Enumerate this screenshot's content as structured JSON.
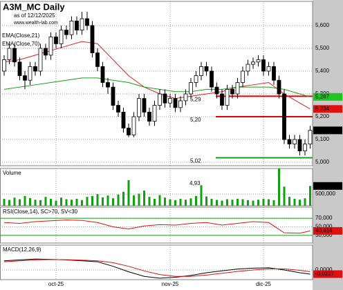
{
  "chart_data": [
    {
      "type": "candlestick",
      "title": "A3M_MC Daily",
      "subtitle": "as of 12/12/2025",
      "source": "www.wealth-lab.com",
      "categories": [
        null,
        null,
        null,
        null,
        null,
        null,
        null,
        null,
        null,
        null,
        "oct-25",
        null,
        null,
        null,
        null,
        null,
        null,
        null,
        null,
        null,
        null,
        null,
        null,
        null,
        null,
        null,
        null,
        null,
        null,
        null,
        null,
        null,
        "nov-25",
        null,
        null,
        null,
        null,
        null,
        null,
        null,
        null,
        null,
        null,
        null,
        null,
        null,
        null,
        null,
        null,
        null,
        "dic-25",
        null,
        null,
        null,
        null,
        null,
        null,
        null,
        null,
        null
      ],
      "open": [
        5.4,
        5.45,
        5.5,
        5.44,
        5.38,
        5.36,
        5.42,
        5.4,
        5.5,
        5.47,
        5.55,
        5.52,
        5.58,
        5.56,
        5.62,
        5.58,
        5.63,
        5.6,
        5.48,
        5.42,
        5.35,
        5.33,
        5.25,
        5.22,
        5.15,
        5.12,
        5.2,
        5.28,
        5.22,
        5.18,
        5.25,
        5.3,
        5.26,
        5.28,
        5.24,
        5.27,
        5.3,
        5.35,
        5.38,
        5.42,
        5.4,
        5.33,
        5.3,
        5.25,
        5.32,
        5.3,
        5.35,
        5.4,
        5.43,
        5.44,
        5.45,
        5.4,
        5.42,
        5.36,
        5.3,
        5.1,
        5.08,
        5.1,
        5.05,
        5.08
      ],
      "high": [
        5.47,
        5.52,
        5.52,
        5.46,
        5.4,
        5.44,
        5.44,
        5.52,
        5.52,
        5.57,
        5.57,
        5.6,
        5.6,
        5.64,
        5.64,
        5.66,
        5.66,
        5.62,
        5.5,
        5.44,
        5.37,
        5.35,
        5.27,
        5.24,
        5.17,
        5.22,
        5.3,
        5.3,
        5.24,
        5.27,
        5.32,
        5.32,
        5.3,
        5.3,
        5.29,
        5.32,
        5.37,
        5.4,
        5.44,
        5.44,
        5.42,
        5.35,
        5.32,
        5.34,
        5.34,
        5.37,
        5.42,
        5.45,
        5.46,
        5.47,
        5.47,
        5.44,
        5.44,
        5.38,
        5.32,
        5.12,
        5.12,
        5.12,
        5.1,
        5.16
      ],
      "low": [
        5.38,
        5.43,
        5.42,
        5.36,
        5.32,
        5.34,
        5.38,
        5.38,
        5.45,
        5.45,
        5.5,
        5.5,
        5.54,
        5.54,
        5.56,
        5.56,
        5.58,
        5.46,
        5.4,
        5.33,
        5.3,
        5.23,
        5.2,
        5.13,
        5.11,
        5.11,
        5.18,
        5.2,
        5.16,
        5.16,
        5.23,
        5.24,
        5.24,
        5.22,
        5.22,
        5.25,
        5.28,
        5.33,
        5.36,
        5.38,
        5.31,
        5.28,
        5.23,
        5.23,
        5.28,
        5.28,
        5.33,
        5.38,
        5.41,
        5.42,
        5.38,
        5.38,
        5.34,
        5.28,
        5.08,
        5.06,
        5.06,
        5.03,
        5.03,
        5.06
      ],
      "close": [
        5.45,
        5.5,
        5.44,
        5.38,
        5.36,
        5.42,
        5.4,
        5.5,
        5.47,
        5.55,
        5.52,
        5.58,
        5.56,
        5.62,
        5.58,
        5.63,
        5.6,
        5.48,
        5.42,
        5.35,
        5.33,
        5.25,
        5.22,
        5.15,
        5.12,
        5.2,
        5.28,
        5.22,
        5.18,
        5.25,
        5.3,
        5.26,
        5.28,
        5.24,
        5.27,
        5.3,
        5.35,
        5.38,
        5.42,
        5.4,
        5.33,
        5.3,
        5.25,
        5.32,
        5.3,
        5.35,
        5.4,
        5.43,
        5.44,
        5.45,
        5.4,
        5.42,
        5.36,
        5.3,
        5.1,
        5.08,
        5.1,
        5.05,
        5.08,
        5.14
      ],
      "ylim": [
        4.985,
        5.706
      ],
      "yticks": [
        {
          "value": 5.0,
          "label": "5,000"
        },
        {
          "value": 5.1,
          "label": "5,100"
        },
        {
          "value": 5.2,
          "label": "5,200"
        },
        {
          "value": 5.3,
          "label": "5,300"
        },
        {
          "value": 5.4,
          "label": "5,400"
        },
        {
          "value": 5.5,
          "label": "5,500"
        },
        {
          "value": 5.6,
          "label": "5,600"
        }
      ],
      "overlays": [
        {
          "name": "EMA(Close,21)",
          "color": "#e02020",
          "x": [
            0,
            3,
            6,
            9,
            12,
            15,
            18,
            21,
            24,
            27,
            30,
            33,
            36,
            39,
            42,
            45,
            48,
            51,
            54,
            57,
            59
          ],
          "values": [
            5.44,
            5.45,
            5.47,
            5.49,
            5.51,
            5.53,
            5.52,
            5.45,
            5.38,
            5.33,
            5.3,
            5.28,
            5.29,
            5.3,
            5.31,
            5.33,
            5.34,
            5.35,
            5.3,
            5.26,
            5.234
          ]
        },
        {
          "name": "EMA(Close,70)",
          "color": "#1a9a1a",
          "x": [
            0,
            3,
            6,
            9,
            12,
            15,
            18,
            21,
            24,
            27,
            30,
            33,
            36,
            39,
            42,
            45,
            48,
            51,
            54,
            57,
            59
          ],
          "values": [
            5.32,
            5.33,
            5.34,
            5.35,
            5.36,
            5.37,
            5.37,
            5.36,
            5.35,
            5.33,
            5.32,
            5.31,
            5.31,
            5.32,
            5.32,
            5.33,
            5.33,
            5.33,
            5.32,
            5.3,
            5.287
          ]
        }
      ],
      "levels": [
        {
          "value": 5.29,
          "label": "5,29",
          "color": "#e00000"
        },
        {
          "value": 5.2,
          "label": "5,20",
          "color": "#e00000"
        },
        {
          "value": 5.02,
          "label": "5,02",
          "color": "#10a010"
        }
      ],
      "markers": [
        {
          "value": 5.287,
          "label": "5,287",
          "color": "#22c422",
          "text_color": "#000000"
        },
        {
          "value": 5.234,
          "label": "5,234",
          "color": "#e01010",
          "text_color": "#ffffff"
        },
        {
          "value": 5.14,
          "label": "5,140",
          "color": "#000000",
          "text_color": "#ffffff"
        }
      ]
    },
    {
      "type": "bar",
      "title": "Volume",
      "color": "#10a010",
      "values": [
        300000,
        250000,
        350000,
        280000,
        420000,
        330000,
        260000,
        240000,
        380000,
        300000,
        220000,
        350000,
        280000,
        260000,
        300000,
        240000,
        380000,
        420000,
        500000,
        360000,
        440000,
        320000,
        480000,
        600000,
        1100000,
        450000,
        520000,
        650000,
        380000,
        300000,
        460000,
        350000,
        280000,
        240000,
        300000,
        260000,
        320000,
        420000,
        880000,
        400000,
        300000,
        250000,
        220000,
        280000,
        260000,
        300000,
        280000,
        240000,
        220000,
        260000,
        300000,
        280000,
        240000,
        1600000,
        820000,
        380000,
        300000,
        260000,
        320000,
        850170
      ],
      "ylim": [
        0,
        1600000
      ],
      "yticks": [
        {
          "value": 500000,
          "label": "500,000"
        }
      ],
      "markers": [
        {
          "value": 850170,
          "label": "850,170",
          "color": "#000000",
          "text_color": "#ffffff"
        }
      ],
      "annotations": [
        "4,93"
      ]
    },
    {
      "type": "line",
      "title": "RSI(Close,14), SC>70, SV<30",
      "x": [
        0,
        3,
        6,
        9,
        12,
        15,
        18,
        21,
        24,
        27,
        30,
        33,
        36,
        39,
        42,
        45,
        48,
        51,
        54,
        57,
        59
      ],
      "series": [
        {
          "color": "#e01010",
          "values": [
            60,
            58,
            62,
            64,
            66,
            65,
            60,
            50,
            45,
            52,
            55,
            54,
            58,
            60,
            54,
            58,
            62,
            60,
            36,
            35,
            40.414
          ]
        }
      ],
      "ylim": [
        12,
        96
      ],
      "yticks": [
        {
          "value": 70,
          "label": "70,000"
        },
        {
          "value": 50,
          "label": "50,000"
        },
        {
          "value": 30,
          "label": "30,000"
        }
      ],
      "levels": [
        {
          "value": 70,
          "color": "#10a010"
        },
        {
          "value": 30,
          "color": "#10a010"
        }
      ],
      "markers": [
        {
          "value": 40.414,
          "label": "40,414",
          "color": "#e01010",
          "text_color": "#ffffff"
        }
      ]
    },
    {
      "type": "line",
      "title": "MACD(12,26,9)",
      "x": [
        0,
        3,
        6,
        9,
        12,
        15,
        18,
        21,
        24,
        27,
        30,
        33,
        36,
        39,
        42,
        45,
        48,
        51,
        54,
        57,
        59
      ],
      "series": [
        {
          "color": "#000000",
          "values": [
            0.05,
            0.055,
            0.06,
            0.058,
            0.055,
            0.05,
            0.045,
            0.02,
            -0.01,
            -0.035,
            -0.045,
            -0.04,
            -0.03,
            -0.015,
            -0.005,
            0.005,
            0.01,
            0.012,
            0.0,
            -0.015,
            -0.0227
          ]
        },
        {
          "color": "#e01010",
          "values": [
            0.045,
            0.05,
            0.055,
            0.057,
            0.056,
            0.054,
            0.05,
            0.04,
            0.02,
            -0.005,
            -0.025,
            -0.035,
            -0.035,
            -0.028,
            -0.018,
            -0.008,
            0.0,
            0.006,
            0.006,
            -0.002,
            -0.01
          ]
        }
      ],
      "ylim": [
        -0.053,
        0.136
      ],
      "yticks": [
        {
          "value": 0,
          "label": "0,0000"
        }
      ],
      "markers": [
        {
          "value": -0.0227,
          "label": "-0,0227",
          "color": "#e01010",
          "text_color": "#ffffff"
        }
      ]
    }
  ]
}
